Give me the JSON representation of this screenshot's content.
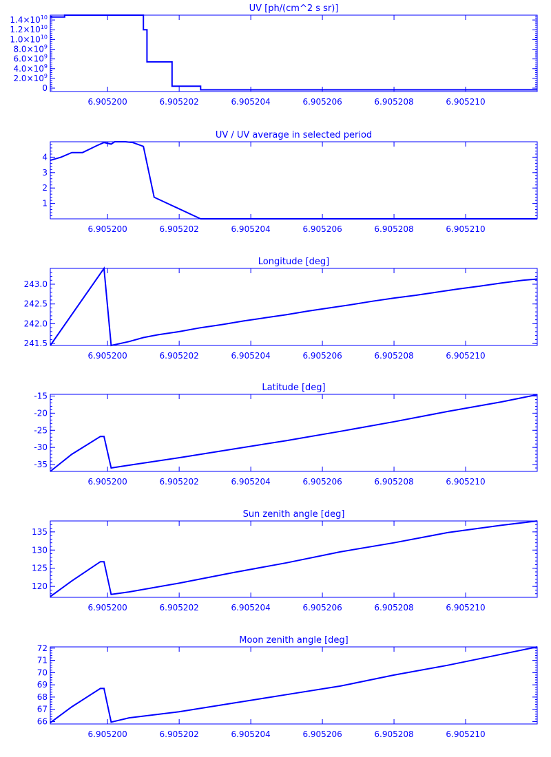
{
  "style": {
    "color": "#0000ff",
    "background": "#ffffff"
  },
  "chart_data": [
    {
      "type": "line",
      "title": "UV [ph/(cm^2 s sr)]",
      "xlabel": "",
      "ylabel": "",
      "xlim": [
        6.9051984,
        6.905212
      ],
      "ylim": [
        -700000000,
        15000000000
      ],
      "grid": false,
      "x_ticks": [
        6.9052,
        6.905202,
        6.905204,
        6.905206,
        6.905208,
        6.90521
      ],
      "x_tick_labels": [
        "6.905200",
        "6.905202",
        "6.905204",
        "6.905206",
        "6.905208",
        "6.905210"
      ],
      "y_ticks": [
        0,
        2000000000,
        4000000000,
        6000000000,
        8000000000,
        10000000000,
        12000000000,
        14000000000
      ],
      "y_tick_labels": [
        {
          "base": "0",
          "exp": ""
        },
        {
          "base": "2.0×10",
          "exp": "9"
        },
        {
          "base": "4.0×10",
          "exp": "9"
        },
        {
          "base": "6.0×10",
          "exp": "9"
        },
        {
          "base": "8.0×10",
          "exp": "9"
        },
        {
          "base": "1.0×10",
          "exp": "10"
        },
        {
          "base": "1.2×10",
          "exp": "10"
        },
        {
          "base": "1.4×10",
          "exp": "10"
        }
      ],
      "series": [
        {
          "x": [
            6.9051984,
            6.9051988,
            6.9051988,
            6.905201,
            6.905201,
            6.9052011,
            6.9052011,
            6.9052018,
            6.9052018,
            6.9052026,
            6.9052026,
            6.905212
          ],
          "y": [
            14600000000,
            14600000000,
            15000000000,
            15000000000,
            12000000000,
            12000000000,
            5400000000,
            5400000000,
            400000000,
            400000000,
            -350000000,
            -350000000
          ]
        }
      ]
    },
    {
      "type": "line",
      "title": "UV / UV average in selected period",
      "xlabel": "",
      "ylabel": "",
      "xlim": [
        6.9051984,
        6.905212
      ],
      "ylim": [
        0,
        5.0
      ],
      "grid": false,
      "x_ticks": [
        6.9052,
        6.905202,
        6.905204,
        6.905206,
        6.905208,
        6.90521
      ],
      "x_tick_labels": [
        "6.905200",
        "6.905202",
        "6.905204",
        "6.905206",
        "6.905208",
        "6.905210"
      ],
      "y_ticks": [
        1,
        2,
        3,
        4
      ],
      "y_tick_labels": [
        {
          "base": "1",
          "exp": ""
        },
        {
          "base": "2",
          "exp": ""
        },
        {
          "base": "3",
          "exp": ""
        },
        {
          "base": "4",
          "exp": ""
        }
      ],
      "series": [
        {
          "x": [
            6.9051984,
            6.9051987,
            6.905199,
            6.9051993,
            6.9051997,
            6.9051999,
            6.9052001,
            6.9052002,
            6.9052005,
            6.9052007,
            6.905201,
            6.9052013,
            6.9052026,
            6.905212
          ],
          "y": [
            3.8,
            4.0,
            4.3,
            4.3,
            4.75,
            4.95,
            4.85,
            5.0,
            5.0,
            4.95,
            4.7,
            1.4,
            0.0,
            0.0
          ]
        }
      ]
    },
    {
      "type": "line",
      "title": "Longitude [deg]",
      "xlabel": "",
      "ylabel": "",
      "xlim": [
        6.9051984,
        6.905212
      ],
      "ylim": [
        241.45,
        243.4
      ],
      "grid": false,
      "x_ticks": [
        6.9052,
        6.905202,
        6.905204,
        6.905206,
        6.905208,
        6.90521
      ],
      "x_tick_labels": [
        "6.905200",
        "6.905202",
        "6.905204",
        "6.905206",
        "6.905208",
        "6.905210"
      ],
      "y_ticks": [
        241.5,
        242.0,
        242.5,
        243.0
      ],
      "y_tick_labels": [
        {
          "base": "241.5",
          "exp": ""
        },
        {
          "base": "242.0",
          "exp": ""
        },
        {
          "base": "242.5",
          "exp": ""
        },
        {
          "base": "243.0",
          "exp": ""
        }
      ],
      "series": [
        {
          "x": [
            6.9051984,
            6.9051999,
            6.9051999,
            6.9052001,
            6.9052002,
            6.9052006,
            6.905201,
            6.9052014,
            6.905202,
            6.9052026,
            6.9052032,
            6.9052038,
            6.9052044,
            6.905205,
            6.9052056,
            6.9052062,
            6.9052068,
            6.9052074,
            6.905208,
            6.9052086,
            6.9052092,
            6.9052098,
            6.9052104,
            6.905211,
            6.9052116,
            6.905212
          ],
          "y": [
            241.45,
            243.4,
            243.4,
            241.45,
            241.47,
            241.55,
            241.65,
            241.72,
            241.8,
            241.9,
            241.98,
            242.07,
            242.15,
            242.23,
            242.32,
            242.4,
            242.48,
            242.57,
            242.65,
            242.72,
            242.8,
            242.88,
            242.95,
            243.03,
            243.1,
            243.13
          ]
        }
      ]
    },
    {
      "type": "line",
      "title": "Latitude [deg]",
      "xlabel": "",
      "ylabel": "",
      "xlim": [
        6.9051984,
        6.905212
      ],
      "ylim": [
        -37.0,
        -14.5
      ],
      "grid": false,
      "x_ticks": [
        6.9052,
        6.905202,
        6.905204,
        6.905206,
        6.905208,
        6.90521
      ],
      "x_tick_labels": [
        "6.905200",
        "6.905202",
        "6.905204",
        "6.905206",
        "6.905208",
        "6.905210"
      ],
      "y_ticks": [
        -35,
        -30,
        -25,
        -20,
        -15
      ],
      "y_tick_labels": [
        {
          "base": "-35",
          "exp": ""
        },
        {
          "base": "-30",
          "exp": ""
        },
        {
          "base": "-25",
          "exp": ""
        },
        {
          "base": "-20",
          "exp": ""
        },
        {
          "base": "-15",
          "exp": ""
        }
      ],
      "series": [
        {
          "x": [
            6.9051984,
            6.905199,
            6.9051998,
            6.9051999,
            6.9052001,
            6.9052006,
            6.905202,
            6.9052035,
            6.905205,
            6.9052065,
            6.905208,
            6.9052095,
            6.905211,
            6.905212
          ],
          "y": [
            -37.0,
            -32.0,
            -26.8,
            -26.8,
            -36.0,
            -35.2,
            -33.0,
            -30.5,
            -28.0,
            -25.3,
            -22.5,
            -19.5,
            -16.7,
            -14.6
          ]
        }
      ]
    },
    {
      "type": "line",
      "title": "Sun zenith angle [deg]",
      "xlabel": "",
      "ylabel": "",
      "xlim": [
        6.9051984,
        6.905212
      ],
      "ylim": [
        117.0,
        138.0
      ],
      "grid": false,
      "x_ticks": [
        6.9052,
        6.905202,
        6.905204,
        6.905206,
        6.905208,
        6.90521
      ],
      "x_tick_labels": [
        "6.905200",
        "6.905202",
        "6.905204",
        "6.905206",
        "6.905208",
        "6.905210"
      ],
      "y_ticks": [
        120,
        125,
        130,
        135
      ],
      "y_tick_labels": [
        {
          "base": "120",
          "exp": ""
        },
        {
          "base": "125",
          "exp": ""
        },
        {
          "base": "130",
          "exp": ""
        },
        {
          "base": "135",
          "exp": ""
        }
      ],
      "series": [
        {
          "x": [
            6.9051984,
            6.905199,
            6.9051998,
            6.9051999,
            6.9052001,
            6.9052006,
            6.905202,
            6.9052035,
            6.905205,
            6.9052065,
            6.905208,
            6.9052095,
            6.905211,
            6.905212
          ],
          "y": [
            117.2,
            121.5,
            126.8,
            126.8,
            117.8,
            118.5,
            120.9,
            123.8,
            126.5,
            129.5,
            132.0,
            134.8,
            136.8,
            138.0
          ]
        }
      ]
    },
    {
      "type": "line",
      "title": "Moon zenith angle [deg]",
      "xlabel": "",
      "ylabel": "",
      "xlim": [
        6.9051984,
        6.905212
      ],
      "ylim": [
        65.8,
        72.1
      ],
      "grid": false,
      "x_ticks": [
        6.9052,
        6.905202,
        6.905204,
        6.905206,
        6.905208,
        6.90521
      ],
      "x_tick_labels": [
        "6.905200",
        "6.905202",
        "6.905204",
        "6.905206",
        "6.905208",
        "6.905210"
      ],
      "y_ticks": [
        66,
        67,
        68,
        69,
        70,
        71,
        72
      ],
      "y_tick_labels": [
        {
          "base": "66",
          "exp": ""
        },
        {
          "base": "67",
          "exp": ""
        },
        {
          "base": "68",
          "exp": ""
        },
        {
          "base": "69",
          "exp": ""
        },
        {
          "base": "70",
          "exp": ""
        },
        {
          "base": "71",
          "exp": ""
        },
        {
          "base": "72",
          "exp": ""
        }
      ],
      "series": [
        {
          "x": [
            6.9051984,
            6.905199,
            6.9051998,
            6.9051999,
            6.9052001,
            6.9052006,
            6.905202,
            6.9052035,
            6.905205,
            6.9052065,
            6.905208,
            6.9052095,
            6.905211,
            6.905212
          ],
          "y": [
            65.9,
            67.2,
            68.7,
            68.7,
            65.95,
            66.3,
            66.8,
            67.5,
            68.2,
            68.9,
            69.8,
            70.6,
            71.5,
            72.1
          ]
        }
      ]
    }
  ]
}
